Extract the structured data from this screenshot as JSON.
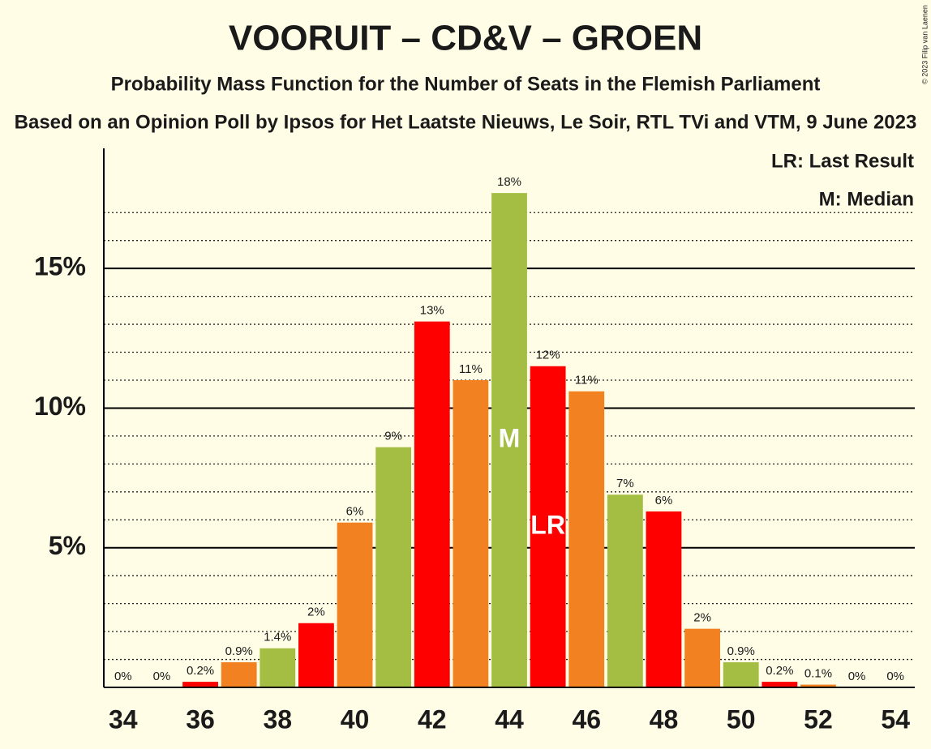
{
  "chart_data": {
    "type": "bar",
    "title": "VOORUIT – CD&V – GROEN",
    "subtitle": "Probability Mass Function for the Number of Seats in the Flemish Parliament",
    "subtitle2": "Based on an Opinion Poll by Ipsos for Het Laatste Nieuws, Le Soir, RTL TVi and VTM, 9 June 2023",
    "copyright": "© 2023 Filip van Laenen",
    "legend_lines": [
      "LR: Last Result",
      "M: Median"
    ],
    "x": [
      34,
      35,
      36,
      37,
      38,
      39,
      40,
      41,
      42,
      43,
      44,
      45,
      46,
      47,
      48,
      49,
      50,
      51,
      52,
      53,
      54
    ],
    "values": [
      0,
      0,
      0.2,
      0.9,
      1.4,
      2.3,
      5.9,
      8.6,
      13.1,
      11.0,
      17.7,
      11.5,
      10.6,
      6.9,
      6.3,
      2.1,
      0.9,
      0.2,
      0.1,
      0,
      0
    ],
    "value_labels": [
      "0%",
      "0%",
      "0.2%",
      "0.9%",
      "1.4%",
      "2%",
      "6%",
      "9%",
      "13%",
      "11%",
      "18%",
      "12%",
      "11%",
      "7%",
      "6%",
      "2%",
      "0.9%",
      "0.2%",
      "0.1%",
      "0%",
      "0%"
    ],
    "colors": [
      "#f28121",
      "#a3be43",
      "#ff0000",
      "#f28121",
      "#a3be43",
      "#ff0000",
      "#f28121",
      "#a3be43",
      "#ff0000",
      "#f28121",
      "#a3be43",
      "#ff0000",
      "#f28121",
      "#a3be43",
      "#ff0000",
      "#f28121",
      "#a3be43",
      "#ff0000",
      "#f28121",
      "#a3be43",
      "#ff0000"
    ],
    "median": {
      "x": 44,
      "label": "M"
    },
    "last_result": {
      "x": 45,
      "label": "LR"
    },
    "xlim": [
      33.5,
      54.5
    ],
    "xticks": [
      34,
      36,
      38,
      40,
      42,
      44,
      46,
      48,
      50,
      52,
      54
    ],
    "ylim": [
      0,
      19.3
    ],
    "yticks": [
      {
        "value": 5,
        "label": "5%"
      },
      {
        "value": 10,
        "label": "10%"
      },
      {
        "value": 15,
        "label": "15%"
      }
    ],
    "minor_yticks": [
      1,
      2,
      3,
      4,
      6,
      7,
      8,
      9,
      11,
      12,
      13,
      14,
      16,
      17
    ],
    "grid": true
  }
}
